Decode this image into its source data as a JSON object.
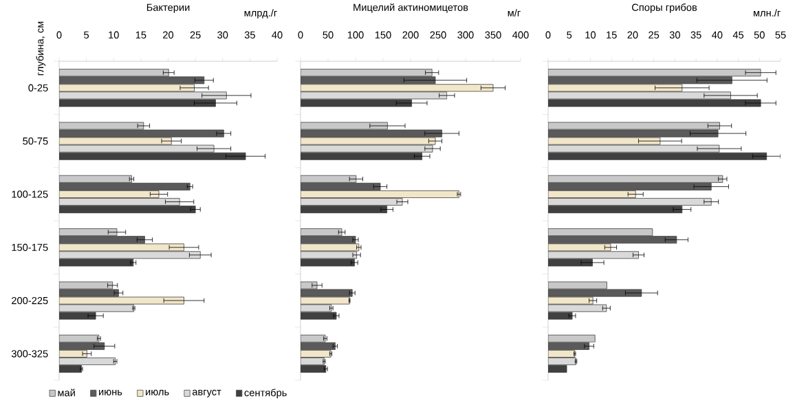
{
  "chart_data": [
    {
      "type": "bar",
      "orientation": "horizontal",
      "title": "Бактерии",
      "xlabel": "млрд./г",
      "ylabel": "глубина, см",
      "legend": "bottom",
      "categories": [
        "0-25",
        "50-75",
        "100-125",
        "150-175",
        "200-225",
        "300-325"
      ],
      "xlim": [
        0,
        40
      ],
      "xticks": [
        0,
        5,
        10,
        15,
        20,
        25,
        30,
        35,
        40
      ],
      "series": [
        {
          "name": "май",
          "color": "#c8c8c8",
          "values": [
            20.1,
            15.5,
            13.3,
            10.6,
            9.8,
            7.3
          ],
          "errors": [
            1,
            1.1,
            0.4,
            1.6,
            0.9,
            0.3
          ]
        },
        {
          "name": "июнь",
          "color": "#5a5a5a",
          "values": [
            26.6,
            30.2,
            24.0,
            15.7,
            10.9,
            8.3
          ],
          "errors": [
            1.7,
            1.3,
            0.5,
            1.4,
            0.8,
            1.9
          ]
        },
        {
          "name": "июль",
          "color": "#f2e6c9",
          "values": [
            24.8,
            20.6,
            18.3,
            22.9,
            22.9,
            5.1
          ],
          "errors": [
            2.6,
            1.8,
            1.6,
            2.7,
            3.7,
            0.8
          ]
        },
        {
          "name": "август",
          "color": "#d9d9d9",
          "values": [
            30.7,
            28.4,
            22.1,
            25.9,
            13.7,
            10.3
          ],
          "errors": [
            4.5,
            3.1,
            2.6,
            2,
            0.2,
            0.3
          ]
        },
        {
          "name": "сентябрь",
          "color": "#404040",
          "values": [
            28.7,
            34.2,
            25.0,
            13.6,
            6.7,
            4.1
          ],
          "errors": [
            3.9,
            3.6,
            0.9,
            0.5,
            1.4,
            0.2
          ]
        }
      ]
    },
    {
      "type": "bar",
      "orientation": "horizontal",
      "title": "Мицелий актиномицетов",
      "xlabel": "м/г",
      "tick_labels": "x",
      "categories": [
        null,
        null,
        null,
        null,
        null,
        null
      ],
      "xlim": [
        0,
        400
      ],
      "xticks": [
        0,
        50,
        100,
        150,
        200,
        250,
        300,
        350,
        400
      ],
      "series": [
        {
          "color": "#c8c8c8",
          "values": [
            239,
            158,
            101,
            75,
            30,
            45
          ],
          "errors": [
            12,
            32,
            12,
            6,
            9,
            3
          ]
        },
        {
          "color": "#5a5a5a",
          "values": [
            245,
            257,
            145,
            100,
            94,
            63
          ],
          "errors": [
            57,
            31,
            12,
            5,
            5,
            4
          ]
        },
        {
          "color": "#f2e6c9",
          "values": [
            350,
            245,
            288,
            106,
            89,
            55
          ],
          "errors": [
            22,
            12,
            3,
            4,
            1,
            2
          ]
        },
        {
          "color": "#d9d9d9",
          "values": [
            266,
            240,
            185,
            102,
            56,
            43
          ],
          "errors": [
            14,
            14,
            10,
            7,
            3,
            2
          ]
        },
        {
          "color": "#404040",
          "values": [
            202,
            221,
            157,
            98,
            65,
            46
          ],
          "errors": [
            28,
            14,
            11,
            6,
            5,
            3
          ]
        }
      ]
    },
    {
      "type": "bar",
      "orientation": "horizontal",
      "title": "Споры грибов",
      "xlabel": "млн./г",
      "tick_labels": "x",
      "categories": [
        null,
        null,
        null,
        null,
        null,
        null
      ],
      "xlim": [
        0,
        55
      ],
      "xticks": [
        0,
        5,
        10,
        15,
        20,
        25,
        30,
        35,
        40,
        45,
        50,
        55
      ],
      "series": [
        {
          "color": "#c8c8c8",
          "values": [
            50.3,
            40.6,
            41.3,
            24.7,
            13.9,
            11.1
          ],
          "errors": [
            3.6,
            2.8,
            1,
            null,
            null,
            null
          ]
        },
        {
          "color": "#5a5a5a",
          "values": [
            43.5,
            40.2,
            38.6,
            30.4,
            22.1,
            9.7
          ],
          "errors": [
            8.3,
            6.6,
            4.1,
            2.7,
            3.8,
            1.1
          ]
        },
        {
          "color": "#f2e6c9",
          "values": [
            31.7,
            26.5,
            20.7,
            14.8,
            10.6,
            6.3
          ],
          "errors": [
            6.4,
            5.1,
            1.8,
            1.4,
            0.9,
            0.2
          ]
        },
        {
          "color": "#d9d9d9",
          "values": [
            43.2,
            40.5,
            38.6,
            21.4,
            13.8,
            6.6
          ],
          "errors": [
            6.3,
            5.2,
            1.7,
            1.3,
            0.9,
            0.2
          ]
        },
        {
          "color": "#404040",
          "values": [
            50.3,
            51.7,
            31.7,
            10.5,
            5.7,
            4.4
          ],
          "errors": [
            3.6,
            3.3,
            2.1,
            2.7,
            0.8,
            null
          ]
        }
      ]
    }
  ]
}
